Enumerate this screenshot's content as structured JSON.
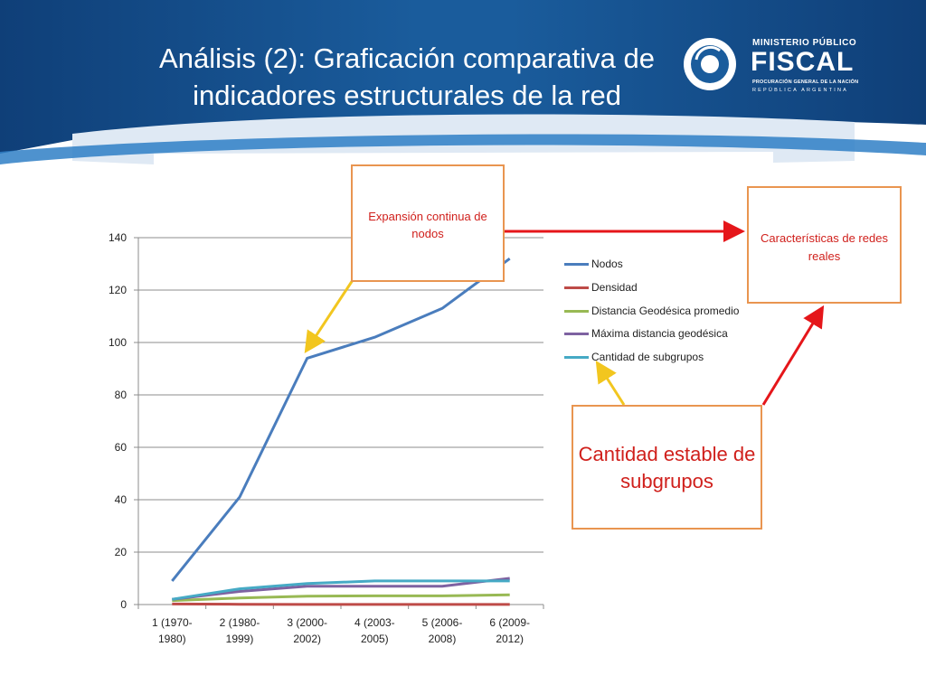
{
  "slide": {
    "title_line1": "Análisis (2): Graficación comparativa de",
    "title_line2": "indicadores estructurales de la red"
  },
  "logo": {
    "line1": "MINISTERIO PÚBLICO",
    "line2": "FISCAL",
    "line3": "PROCURACIÓN GENERAL DE LA NACIÓN",
    "line4": "REPÚBLICA ARGENTINA"
  },
  "callouts": {
    "expansion": "Expansión continua de nodos",
    "caracteristicas": "Características de redes reales",
    "subgrupos": "Cantidad estable de subgrupos"
  },
  "colors": {
    "header": "#1a5c9c",
    "callout_border": "#e99550",
    "callout_text": "#d0201c",
    "arrow_red": "#e5161a",
    "arrow_yellow": "#f2c61f"
  },
  "chart_data": {
    "type": "line",
    "categories": [
      [
        "1 (1970-",
        "1980)"
      ],
      [
        "2 (1980-",
        "1999)"
      ],
      [
        "3 (2000-",
        "2002)"
      ],
      [
        "4 (2003-",
        "2005)"
      ],
      [
        "5 (2006-",
        "2008)"
      ],
      [
        "6 (2009-",
        "2012)"
      ]
    ],
    "ylim": [
      0,
      140
    ],
    "yticks": [
      0,
      20,
      40,
      60,
      80,
      100,
      120,
      140
    ],
    "grid": true,
    "legend_position": "right",
    "series": [
      {
        "name": "Nodos",
        "color": "#4a7dbd",
        "values": [
          9,
          41,
          94,
          102,
          113,
          132
        ]
      },
      {
        "name": "Densidad",
        "color": "#be4b48",
        "values": [
          0.2,
          0.1,
          0.05,
          0.05,
          0.04,
          0.04
        ]
      },
      {
        "name": "Distancia Geodésica promedio",
        "color": "#98b954",
        "values": [
          1.5,
          2.5,
          3.2,
          3.3,
          3.3,
          3.7
        ]
      },
      {
        "name": "Máxima distancia geodésica",
        "color": "#7e62a1",
        "values": [
          2,
          5,
          7,
          7,
          7,
          10
        ]
      },
      {
        "name": "Cantidad de subgrupos",
        "color": "#46aac5",
        "values": [
          2,
          6,
          8,
          9,
          9,
          9
        ]
      }
    ]
  }
}
